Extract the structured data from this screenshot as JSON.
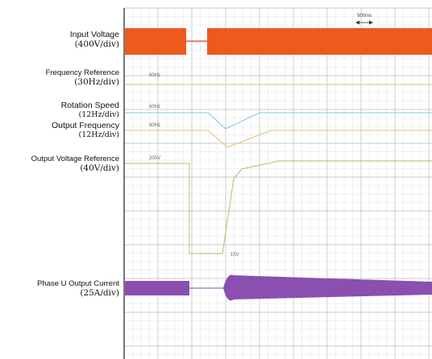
{
  "chart_data": {
    "type": "line",
    "time_div": "500ms",
    "time_divisions": 10,
    "series": [
      {
        "name": "Input Voltage",
        "scale": "(400V/div)",
        "color": "#ec5a1e"
      },
      {
        "name": "Frequency Reference",
        "scale": "(30Hz/div)",
        "color": "#d9cf7a",
        "level_label": "60Hz"
      },
      {
        "name": "Rotation Speed",
        "scale": "(12Hz/div)",
        "color": "#8ac4de",
        "level_label": "60Hz"
      },
      {
        "name": "Output Frequency",
        "scale": "(12Hz/div)",
        "color": "#e0c070",
        "level_label": "60Hz"
      },
      {
        "name": "Output Voltage Reference",
        "scale": "(40V/div)",
        "color": "#9ccc6c",
        "level_label": "200V",
        "min_label": "15V"
      },
      {
        "name": "Phase U Output Current",
        "scale": "(25A/div)",
        "color": "#8a4fb0"
      }
    ]
  }
}
